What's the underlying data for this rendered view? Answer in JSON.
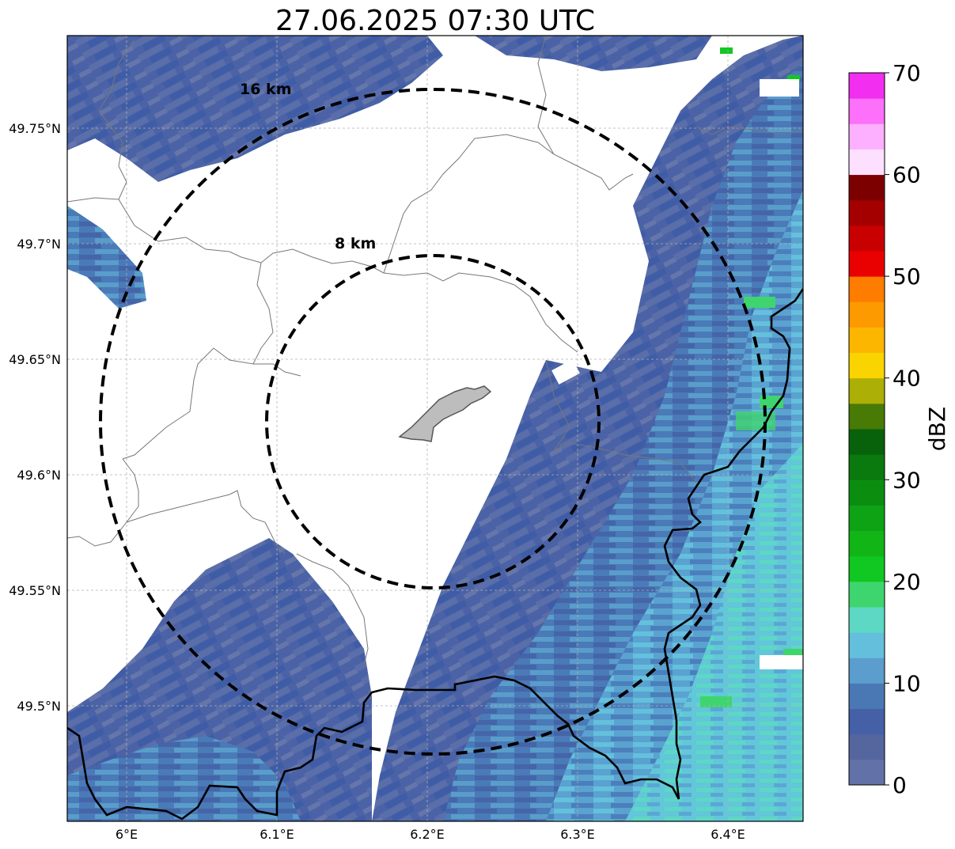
{
  "title": "27.06.2025 07:30 UTC",
  "map": {
    "lon_range": [
      5.96,
      6.45
    ],
    "lat_range": [
      49.454,
      49.79
    ],
    "gridlines": true,
    "x_ticks": [
      {
        "value": 6.0,
        "label": "6°E"
      },
      {
        "value": 6.1,
        "label": "6.1°E"
      },
      {
        "value": 6.2,
        "label": "6.2°E"
      },
      {
        "value": 6.3,
        "label": "6.3°E"
      },
      {
        "value": 6.4,
        "label": "6.4°E"
      }
    ],
    "y_ticks": [
      {
        "value": 49.5,
        "label": "49.5°N"
      },
      {
        "value": 49.55,
        "label": "49.55°N"
      },
      {
        "value": 49.6,
        "label": "49.6°N"
      },
      {
        "value": 49.65,
        "label": "49.65°N"
      },
      {
        "value": 49.7,
        "label": "49.7°N"
      },
      {
        "value": 49.75,
        "label": "49.75°N"
      }
    ],
    "radar_center": {
      "lon": 6.202,
      "lat": 49.623
    },
    "range_rings": [
      {
        "label": "8 km",
        "radius_km": 8
      },
      {
        "label": "16 km",
        "radius_km": 16
      }
    ]
  },
  "colorbar": {
    "label": "dBZ",
    "min": 0,
    "max": 70,
    "ticks": [
      {
        "value": 0,
        "label": "0"
      },
      {
        "value": 10,
        "label": "10"
      },
      {
        "value": 20,
        "label": "20"
      },
      {
        "value": 30,
        "label": "30"
      },
      {
        "value": 40,
        "label": "40"
      },
      {
        "value": 50,
        "label": "50"
      },
      {
        "value": 60,
        "label": "60"
      },
      {
        "value": 70,
        "label": "70"
      }
    ],
    "colors": [
      "#6272a8",
      "#55669f",
      "#4560a6",
      "#4a78b5",
      "#5b9dcc",
      "#64bfdc",
      "#5dd8c4",
      "#3fd56e",
      "#10c821",
      "#12b516",
      "#0ea315",
      "#0b8e10",
      "#0a7a0e",
      "#08620b",
      "#487a06",
      "#acaf06",
      "#fad400",
      "#fdb600",
      "#fd9a00",
      "#fe7c00",
      "#e90000",
      "#c80000",
      "#a40000",
      "#7c0000",
      "#fde0ff",
      "#fdb0ff",
      "#fc70fa",
      "#f22ef0"
    ]
  }
}
